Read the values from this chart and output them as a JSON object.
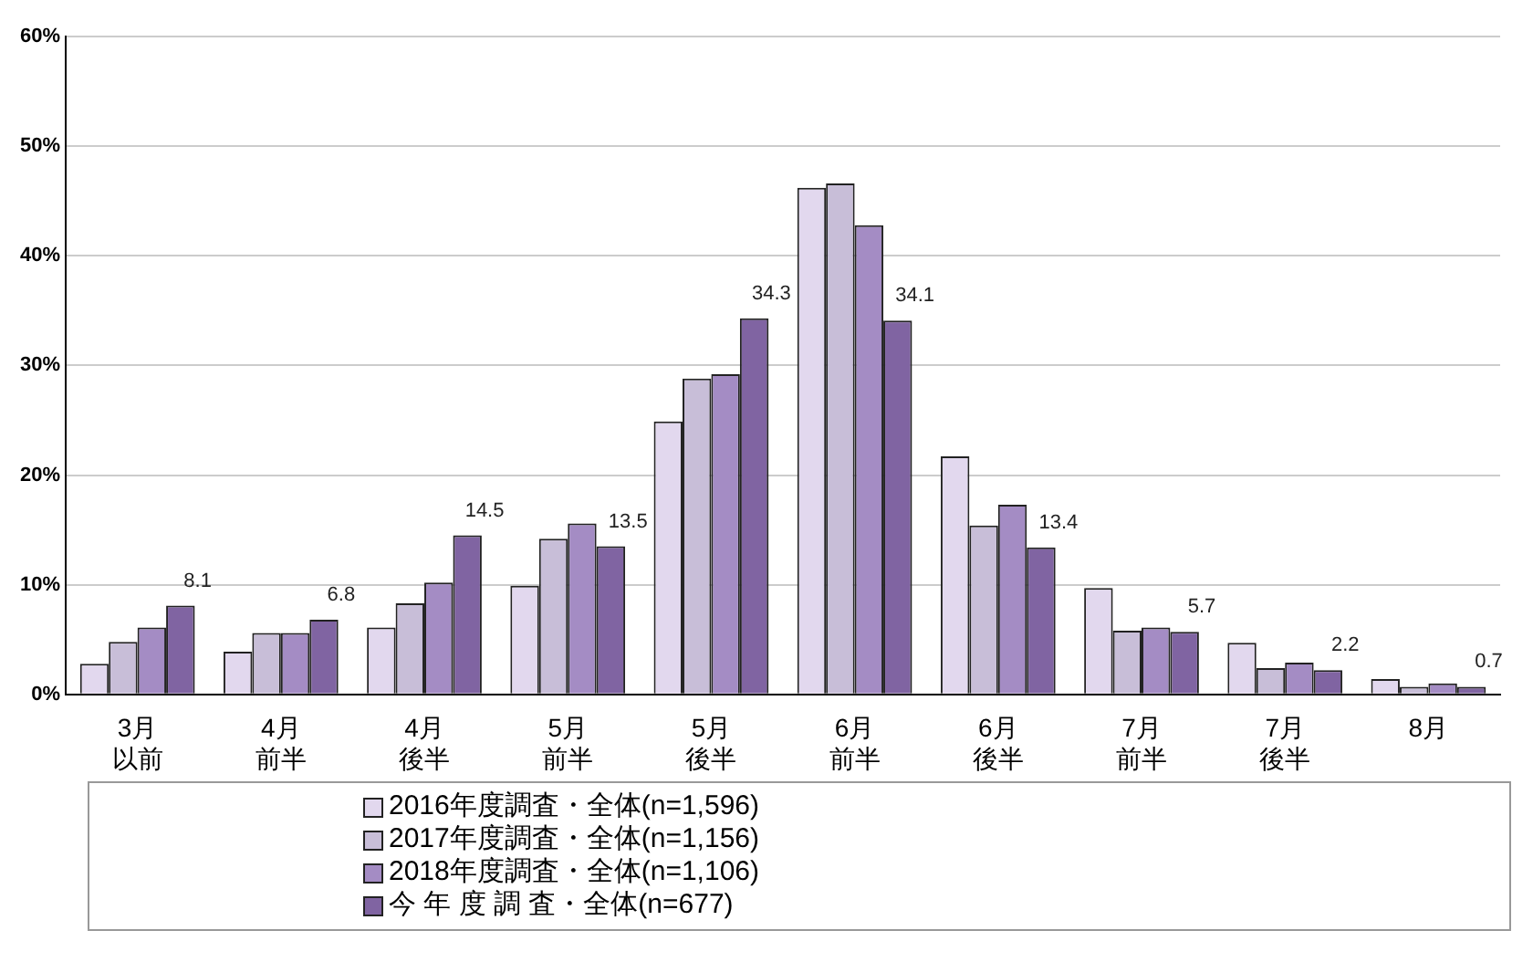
{
  "chart_data": {
    "type": "bar",
    "categories": [
      "3月以前",
      "4月前半",
      "4月後半",
      "5月前半",
      "5月後半",
      "6月前半",
      "6月後半",
      "7月前半",
      "7月後半",
      "8月"
    ],
    "series": [
      {
        "name": "2016年度調査・全体(n=1,596)",
        "color": "#e2d8ee",
        "values": [
          2.8,
          3.9,
          6.1,
          9.9,
          24.9,
          46.2,
          21.7,
          9.7,
          4.7,
          1.4
        ]
      },
      {
        "name": "2017年度調査・全体(n=1,156)",
        "color": "#c8bed8",
        "values": [
          4.8,
          5.6,
          8.3,
          14.2,
          28.8,
          46.6,
          15.4,
          5.8,
          2.4,
          0.7
        ]
      },
      {
        "name": "2018年度調査・全体(n=1,106)",
        "color": "#a48cc4",
        "values": [
          6.1,
          5.6,
          10.2,
          15.6,
          29.2,
          42.8,
          17.3,
          6.1,
          2.9,
          1.0
        ]
      },
      {
        "name": "今 年 度 調 査・全体(n=677)",
        "color": "#8064a2",
        "values": [
          8.1,
          6.8,
          14.5,
          13.5,
          34.3,
          34.1,
          13.4,
          5.7,
          2.2,
          0.7
        ],
        "value_labels": [
          "8.1",
          "6.8",
          "14.5",
          "13.5",
          "34.3",
          "34.1",
          "13.4",
          "5.7",
          "2.2",
          "0.7"
        ]
      }
    ],
    "ylim": [
      0,
      60
    ],
    "yticks": [
      {
        "value": 0,
        "label": "0%"
      },
      {
        "value": 10,
        "label": "10%"
      },
      {
        "value": 20,
        "label": "20%"
      },
      {
        "value": 30,
        "label": "30%"
      },
      {
        "value": 40,
        "label": "40%"
      },
      {
        "value": 50,
        "label": "50%"
      },
      {
        "value": 60,
        "label": "60%"
      }
    ],
    "grid": "y",
    "legend": "bottom"
  }
}
